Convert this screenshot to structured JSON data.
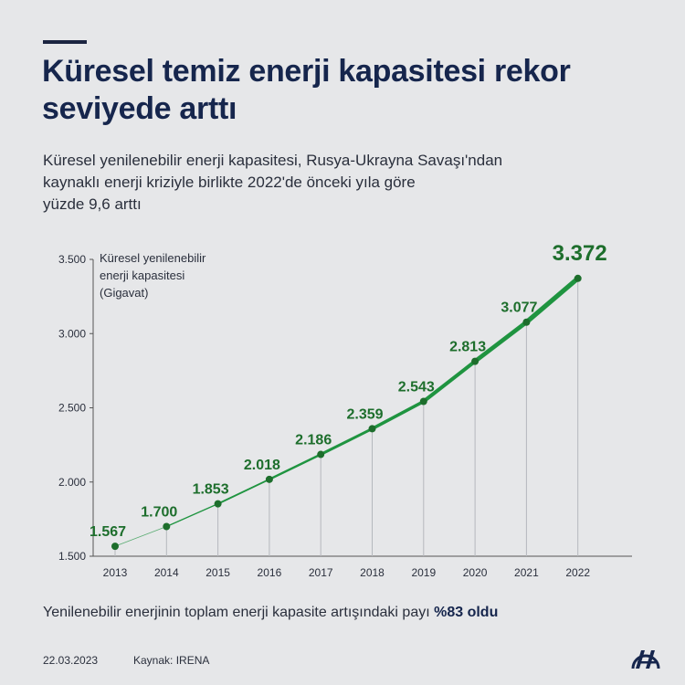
{
  "header": {
    "title": "Küresel temiz enerji kapasitesi rekor seviyede arttı",
    "subtitle_lines": [
      "Küresel yenilenebilir enerji kapasitesi, Rusya-Ukrayna Savaşı'ndan",
      "kaynaklı enerji kriziyle birlikte 2022'de önceki yıla göre",
      "yüzde 9,6 arttı"
    ]
  },
  "chart_data": {
    "type": "line",
    "title": "",
    "ylabel_lines": [
      "Küresel yenilenebilir",
      "enerji kapasitesi",
      "(Gigavat)"
    ],
    "xlabel": "",
    "x": [
      "2013",
      "2014",
      "2015",
      "2016",
      "2017",
      "2018",
      "2019",
      "2020",
      "2021",
      "2022"
    ],
    "values": [
      1567,
      1700,
      1853,
      2018,
      2186,
      2359,
      2543,
      2813,
      3077,
      3372
    ],
    "data_labels": [
      "1.567",
      "1.700",
      "1.853",
      "2.018",
      "2.186",
      "2.359",
      "2.543",
      "2.813",
      "3.077",
      "3.372"
    ],
    "ylim": [
      1500,
      3500
    ],
    "yticks": [
      1500,
      2000,
      2500,
      3000,
      3500
    ],
    "ytick_labels": [
      "1.500",
      "2.000",
      "2.500",
      "3.000",
      "3.500"
    ],
    "grid": false,
    "legend": "none",
    "colors": {
      "line": "#1f9440",
      "label": "#1d6e2c",
      "marker": "#1d6e2c",
      "drop": "#b5b8bd"
    }
  },
  "footer": {
    "note_text": "Yenilenebilir enerjinin toplam enerji kapasite artışındaki payı ",
    "note_bold": "%83 oldu",
    "date": "22.03.2023",
    "source": "Kaynak: IRENA",
    "logo_text": "AA"
  }
}
